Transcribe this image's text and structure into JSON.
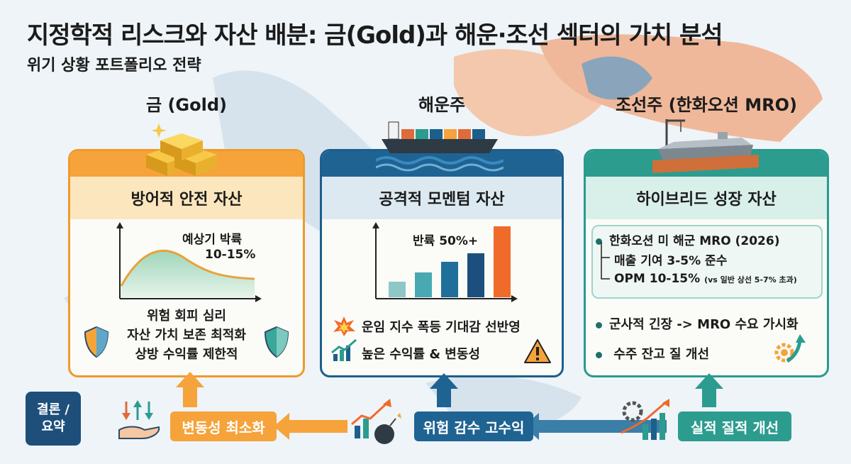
{
  "title": "지정학적 리스크와 자산 배분: 금(Gold)과 해운·조선 섹터의 가치 분석",
  "subtitle": "위기 상황 포트폴리오 전략",
  "columns": {
    "gold": {
      "heading": "금 (Gold)",
      "card_title": "방어적 안전 자산",
      "chart_label_1": "예상기 박륙",
      "chart_label_2": "10-15%",
      "points": [
        "위험 회피 심리",
        "자산 가치 보존 최적화",
        "상방 수익률 제한적"
      ]
    },
    "shipping": {
      "heading": "해운주",
      "card_title": "공격적 모멘텀 자산",
      "chart_label": "반륙 50%+",
      "bar_levels": [
        0.22,
        0.35,
        0.5,
        0.62,
        1.0
      ],
      "points": [
        "운임 지수 폭등 기대감 선반영",
        "높은 수익률 & 변동성"
      ]
    },
    "shipbuilding": {
      "heading": "조선주 (한화오션 MRO)",
      "card_title": "하이브리드 성장 자산",
      "box_line_1": "한화오션 미 해군 MRO (2026)",
      "box_line_2": "매출 기여 3-5% 준수",
      "box_line_3_main": "OPM 10-15%",
      "box_line_3_note": "(vs 일반 상선 5-7% 초과)",
      "points": [
        "군사적 긴장 -> MRO 수요 가시화",
        "수주 잔고 질 개선"
      ]
    }
  },
  "conclusion": {
    "label_1": "결론 /",
    "label_2": "요약",
    "gold_pill": "변동성 최소화",
    "shipping_pill": "위험 감수 고수익",
    "yard_pill": "실적 질적 개선"
  },
  "colors": {
    "gold": "#f09a2a",
    "shipping": "#1c5f8d",
    "shipbuilding": "#2a9a8f",
    "conclusion_box": "#1d4f7a"
  }
}
